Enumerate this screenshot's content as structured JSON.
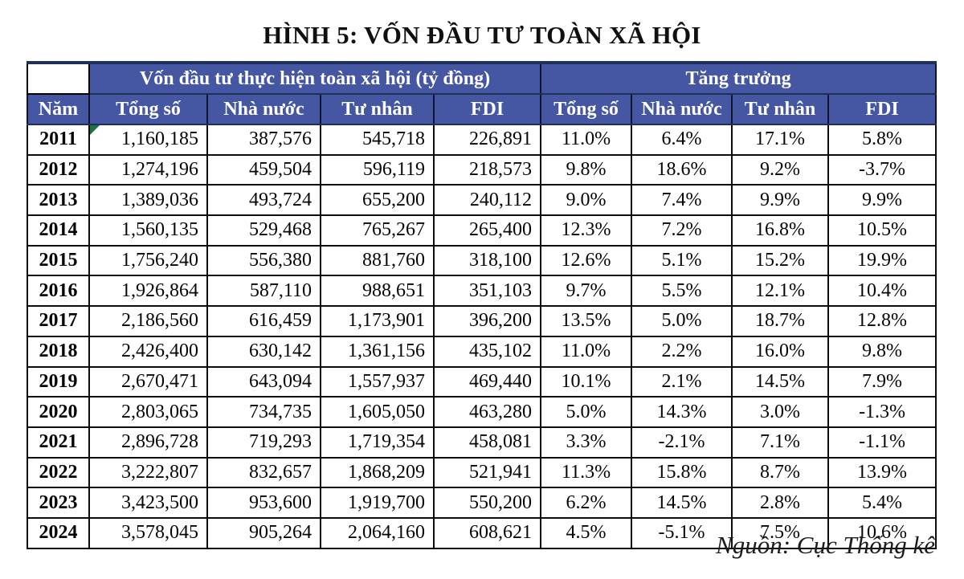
{
  "title": "HÌNH 5: VỐN ĐẦU TƯ TOÀN XÃ HỘI",
  "source_note": "Nguồn: Cục Thống kê",
  "colors": {
    "header_background": "#4557A2",
    "header_border": "#1F3057",
    "header_text": "#FFFFFF",
    "cell_border": "#0D0D0D",
    "error_marker_green": "#1E7145"
  },
  "table": {
    "corner_label": "",
    "group_headers": [
      "Vốn đầu tư thực hiện toàn xã hội (tỷ đồng)",
      "Tăng trưởng"
    ],
    "columns": [
      "Năm",
      "Tổng số",
      "Nhà nước",
      "Tư nhân",
      "FDI",
      "Tổng số",
      "Nhà nước",
      "Tư nhân",
      "FDI"
    ],
    "rows": [
      {
        "year": "2011",
        "values": [
          "1,160,185",
          "387,576",
          "545,718",
          "226,891"
        ],
        "growth": [
          "11.0%",
          "6.4%",
          "17.1%",
          "5.8%"
        ],
        "marker": true
      },
      {
        "year": "2012",
        "values": [
          "1,274,196",
          "459,504",
          "596,119",
          "218,573"
        ],
        "growth": [
          "9.8%",
          "18.6%",
          "9.2%",
          "-3.7%"
        ],
        "marker": false
      },
      {
        "year": "2013",
        "values": [
          "1,389,036",
          "493,724",
          "655,200",
          "240,112"
        ],
        "growth": [
          "9.0%",
          "7.4%",
          "9.9%",
          "9.9%"
        ],
        "marker": false
      },
      {
        "year": "2014",
        "values": [
          "1,560,135",
          "529,468",
          "765,267",
          "265,400"
        ],
        "growth": [
          "12.3%",
          "7.2%",
          "16.8%",
          "10.5%"
        ],
        "marker": false
      },
      {
        "year": "2015",
        "values": [
          "1,756,240",
          "556,380",
          "881,760",
          "318,100"
        ],
        "growth": [
          "12.6%",
          "5.1%",
          "15.2%",
          "19.9%"
        ],
        "marker": false
      },
      {
        "year": "2016",
        "values": [
          "1,926,864",
          "587,110",
          "988,651",
          "351,103"
        ],
        "growth": [
          "9.7%",
          "5.5%",
          "12.1%",
          "10.4%"
        ],
        "marker": false
      },
      {
        "year": "2017",
        "values": [
          "2,186,560",
          "616,459",
          "1,173,901",
          "396,200"
        ],
        "growth": [
          "13.5%",
          "5.0%",
          "18.7%",
          "12.8%"
        ],
        "marker": false
      },
      {
        "year": "2018",
        "values": [
          "2,426,400",
          "630,142",
          "1,361,156",
          "435,102"
        ],
        "growth": [
          "11.0%",
          "2.2%",
          "16.0%",
          "9.8%"
        ],
        "marker": false
      },
      {
        "year": "2019",
        "values": [
          "2,670,471",
          "643,094",
          "1,557,937",
          "469,440"
        ],
        "growth": [
          "10.1%",
          "2.1%",
          "14.5%",
          "7.9%"
        ],
        "marker": false
      },
      {
        "year": "2020",
        "values": [
          "2,803,065",
          "734,735",
          "1,605,050",
          "463,280"
        ],
        "growth": [
          "5.0%",
          "14.3%",
          "3.0%",
          "-1.3%"
        ],
        "marker": false
      },
      {
        "year": "2021",
        "values": [
          "2,896,728",
          "719,293",
          "1,719,354",
          "458,081"
        ],
        "growth": [
          "3.3%",
          "-2.1%",
          "7.1%",
          "-1.1%"
        ],
        "marker": false
      },
      {
        "year": "2022",
        "values": [
          "3,222,807",
          "832,657",
          "1,868,209",
          "521,941"
        ],
        "growth": [
          "11.3%",
          "15.8%",
          "8.7%",
          "13.9%"
        ],
        "marker": false
      },
      {
        "year": "2023",
        "values": [
          "3,423,500",
          "953,600",
          "1,919,700",
          "550,200"
        ],
        "growth": [
          "6.2%",
          "14.5%",
          "2.8%",
          "5.4%"
        ],
        "marker": false
      },
      {
        "year": "2024",
        "values": [
          "3,578,045",
          "905,264",
          "2,064,160",
          "608,621"
        ],
        "growth": [
          "4.5%",
          "-5.1%",
          "7.5%",
          "10.6%"
        ],
        "marker": false
      }
    ]
  }
}
